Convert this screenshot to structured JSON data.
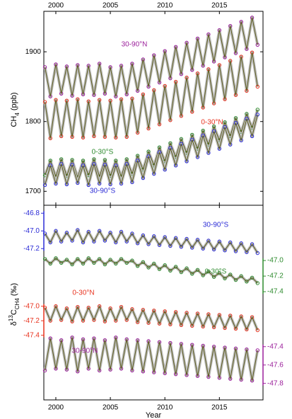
{
  "chart_data": [
    {
      "type": "line",
      "ylabel_parts": [
        "CH",
        "4",
        " (ppb)"
      ],
      "xtick_side": "top",
      "xlim": [
        1998.9,
        2019
      ],
      "xticks": [
        2000,
        2005,
        2010,
        2015
      ],
      "ylim": [
        1680,
        1958
      ],
      "yticks": [
        1700,
        1800,
        1900
      ],
      "x": [
        1999,
        1999.5,
        2000,
        2000.5,
        2001,
        2001.5,
        2002,
        2002.5,
        2003,
        2003.5,
        2004,
        2004.5,
        2005,
        2005.5,
        2006,
        2006.5,
        2007,
        2007.5,
        2008,
        2008.5,
        2009,
        2009.5,
        2010,
        2010.5,
        2011,
        2011.5,
        2012,
        2012.5,
        2013,
        2013.5,
        2014,
        2014.5,
        2015,
        2015.5,
        2016,
        2016.5,
        2017,
        2017.5,
        2018,
        2018.5
      ],
      "series": [
        {
          "name": "30-90°N",
          "color": "#9b1f9b",
          "values": [
            1878,
            1836,
            1882,
            1840,
            1879,
            1837,
            1881,
            1839,
            1880,
            1838,
            1883,
            1840,
            1878,
            1836,
            1880,
            1839,
            1883,
            1844,
            1889,
            1850,
            1895,
            1856,
            1901,
            1862,
            1907,
            1868,
            1913,
            1874,
            1919,
            1880,
            1925,
            1886,
            1931,
            1892,
            1937,
            1898,
            1943,
            1904,
            1949,
            1910
          ]
        },
        {
          "name": "0-30°N",
          "color": "#e8321e",
          "values": [
            1828,
            1776,
            1831,
            1779,
            1830,
            1778,
            1832,
            1777,
            1829,
            1779,
            1831,
            1778,
            1830,
            1777,
            1832,
            1778,
            1833,
            1784,
            1839,
            1790,
            1845,
            1796,
            1851,
            1802,
            1857,
            1808,
            1863,
            1814,
            1869,
            1820,
            1875,
            1826,
            1881,
            1832,
            1887,
            1838,
            1893,
            1844,
            1899,
            1850
          ]
        },
        {
          "name": "0-30°S",
          "color": "#2e8b2e",
          "values": [
            1723,
            1744,
            1721,
            1746,
            1722,
            1745,
            1720,
            1744,
            1723,
            1746,
            1721,
            1745,
            1722,
            1744,
            1721,
            1746,
            1725,
            1751,
            1731,
            1757,
            1737,
            1763,
            1743,
            1769,
            1749,
            1775,
            1755,
            1781,
            1761,
            1787,
            1767,
            1793,
            1773,
            1799,
            1779,
            1805,
            1785,
            1811,
            1791,
            1817
          ]
        },
        {
          "name": "30-90°S",
          "color": "#2b2bd6",
          "values": [
            1709,
            1737,
            1711,
            1739,
            1710,
            1738,
            1712,
            1737,
            1709,
            1739,
            1711,
            1738,
            1710,
            1737,
            1711,
            1739,
            1713,
            1744,
            1719,
            1750,
            1725,
            1756,
            1731,
            1762,
            1737,
            1768,
            1743,
            1774,
            1749,
            1780,
            1755,
            1786,
            1761,
            1792,
            1767,
            1798,
            1773,
            1804,
            1779,
            1810
          ]
        }
      ]
    },
    {
      "type": "line",
      "ylabel_parts": [
        "δ",
        "13",
        "C",
        "CH4",
        " (‰)"
      ],
      "xlabel": "Year",
      "xtick_side": "bottom",
      "xlim": [
        1998.9,
        2019
      ],
      "xticks": [
        2000,
        2005,
        2010,
        2015
      ],
      "x": [
        1999,
        1999.5,
        2000,
        2000.5,
        2001,
        2001.5,
        2002,
        2002.5,
        2003,
        2003.5,
        2004,
        2004.5,
        2005,
        2005.5,
        2006,
        2006.5,
        2007,
        2007.5,
        2008,
        2008.5,
        2009,
        2009.5,
        2010,
        2010.5,
        2011,
        2011.5,
        2012,
        2012.5,
        2013,
        2013.5,
        2014,
        2014.5,
        2015,
        2015.5,
        2016,
        2016.5,
        2017,
        2017.5,
        2018,
        2018.5
      ],
      "series": [
        {
          "name": "30-90°S",
          "color": "#2b2bd6",
          "axis": "left",
          "ylim": [
            -48.91,
            -46.71
          ],
          "yticks": [
            -46.8,
            {
              "value": -47,
              "label": "-47.0"
            },
            -47.2
          ],
          "values": [
            -47.03,
            -47.13,
            -47.0,
            -47.12,
            -47.02,
            -47.11,
            -46.99,
            -47.13,
            -47.01,
            -47.12,
            -47.0,
            -47.11,
            -47.02,
            -47.13,
            -47.01,
            -47.12,
            -47.03,
            -47.14,
            -47.05,
            -47.15,
            -47.06,
            -47.16,
            -47.07,
            -47.17,
            -47.08,
            -47.18,
            -47.09,
            -47.19,
            -47.1,
            -47.2,
            -47.11,
            -47.21,
            -47.12,
            -47.22,
            -47.13,
            -47.23,
            -47.14,
            -47.24,
            -47.15,
            -47.25
          ]
        },
        {
          "name": "0-30°S",
          "color": "#2e8b2e",
          "axis": "right",
          "ylim": [
            -48.79,
            -46.29
          ],
          "yticks": [
            {
              "value": -47,
              "label": "-47.0"
            },
            -47.2,
            -47.4
          ],
          "values": [
            -46.98,
            -47.04,
            -46.97,
            -47.03,
            -46.99,
            -47.05,
            -46.98,
            -47.04,
            -46.97,
            -47.03,
            -46.98,
            -47.05,
            -46.99,
            -47.04,
            -46.98,
            -47.03,
            -47.0,
            -47.07,
            -47.02,
            -47.09,
            -47.04,
            -47.11,
            -47.06,
            -47.13,
            -47.08,
            -47.15,
            -47.1,
            -47.17,
            -47.12,
            -47.19,
            -47.14,
            -47.21,
            -47.16,
            -47.23,
            -47.18,
            -47.25,
            -47.2,
            -47.27,
            -47.22,
            -47.29
          ]
        },
        {
          "name": "0-30°N",
          "color": "#e8321e",
          "axis": "left",
          "ylim": [
            -48.29,
            -45.61
          ],
          "yticks": [
            {
              "value": -47,
              "label": "-47.0"
            },
            -47.2,
            -47.4
          ],
          "values": [
            -47.02,
            -47.2,
            -47.0,
            -47.19,
            -47.03,
            -47.21,
            -47.01,
            -47.2,
            -47.02,
            -47.19,
            -47.0,
            -47.21,
            -47.03,
            -47.2,
            -47.01,
            -47.19,
            -47.04,
            -47.22,
            -47.05,
            -47.23,
            -47.06,
            -47.24,
            -47.07,
            -47.25,
            -47.08,
            -47.26,
            -47.09,
            -47.27,
            -47.1,
            -47.28,
            -47.11,
            -47.29,
            -47.12,
            -47.3,
            -47.13,
            -47.31,
            -47.14,
            -47.32,
            -47.15,
            -47.33
          ]
        },
        {
          "name": "30-90°N",
          "color": "#9b1f9b",
          "axis": "right",
          "ylim": [
            -47.98,
            -45.86
          ],
          "yticks": [
            -47.4,
            -47.6,
            -47.8
          ],
          "values": [
            -47.66,
            -47.31,
            -47.64,
            -47.33,
            -47.65,
            -47.3,
            -47.67,
            -47.32,
            -47.64,
            -47.31,
            -47.66,
            -47.33,
            -47.65,
            -47.3,
            -47.64,
            -47.32,
            -47.66,
            -47.33,
            -47.67,
            -47.34,
            -47.68,
            -47.35,
            -47.69,
            -47.36,
            -47.7,
            -47.37,
            -47.71,
            -47.38,
            -47.72,
            -47.39,
            -47.73,
            -47.4,
            -47.74,
            -47.41,
            -47.75,
            -47.42,
            -47.76,
            -47.43,
            -47.77,
            -47.44
          ]
        }
      ]
    }
  ]
}
